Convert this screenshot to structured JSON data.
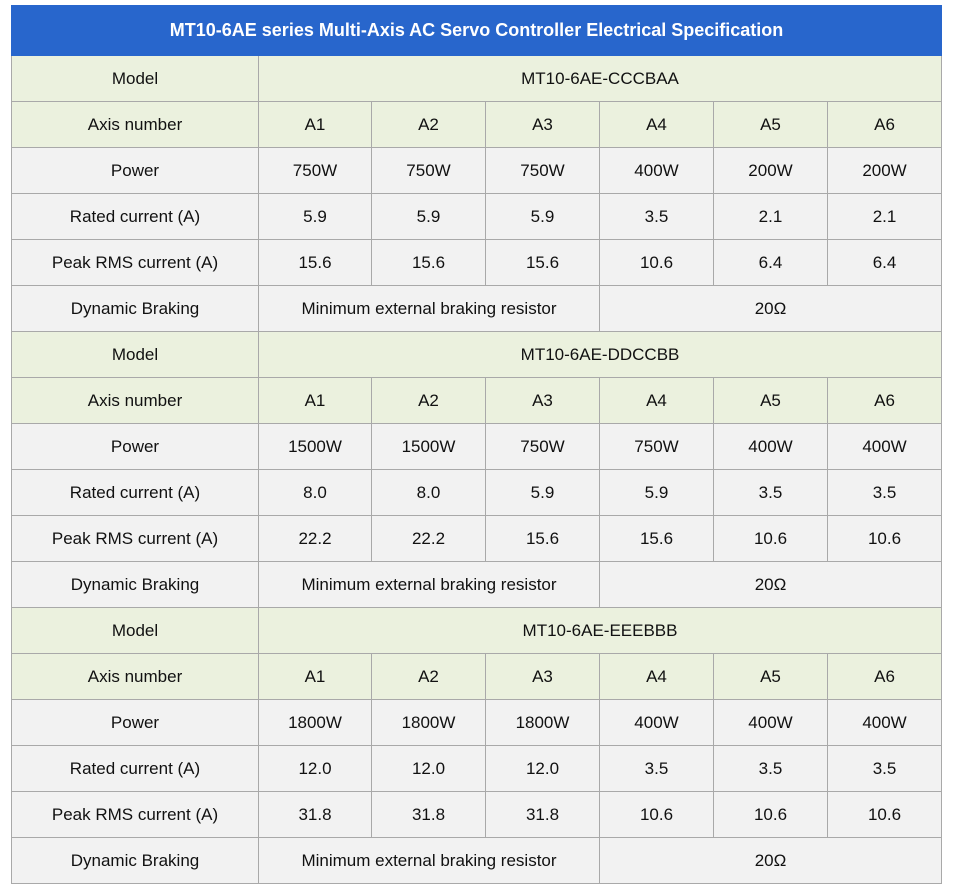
{
  "title": "MT10-6AE series Multi-Axis AC Servo Controller Electrical Specification",
  "labels": {
    "model": "Model",
    "axis_number": "Axis number",
    "power": "Power",
    "rated_current": "Rated current (A)",
    "peak_rms_current": "Peak RMS current (A)",
    "dynamic_braking": "Dynamic Braking"
  },
  "braking_text": "Minimum external braking resistor",
  "colors": {
    "title_bg": "#2866cc",
    "title_text": "#ffffff",
    "green_row": "#ebf1de",
    "gray_row": "#f2f2f2",
    "border": "#a9a9a9"
  },
  "models": [
    {
      "name": "MT10-6AE-CCCBAA",
      "axes": [
        "A1",
        "A2",
        "A3",
        "A4",
        "A5",
        "A6"
      ],
      "power": [
        "750W",
        "750W",
        "750W",
        "400W",
        "200W",
        "200W"
      ],
      "rated_current": [
        "5.9",
        "5.9",
        "5.9",
        "3.5",
        "2.1",
        "2.1"
      ],
      "peak_rms_current": [
        "15.6",
        "15.6",
        "15.6",
        "10.6",
        "6.4",
        "6.4"
      ],
      "braking_resistor": "20Ω"
    },
    {
      "name": "MT10-6AE-DDCCBB",
      "axes": [
        "A1",
        "A2",
        "A3",
        "A4",
        "A5",
        "A6"
      ],
      "power": [
        "1500W",
        "1500W",
        "750W",
        "750W",
        "400W",
        "400W"
      ],
      "rated_current": [
        "8.0",
        "8.0",
        "5.9",
        "5.9",
        "3.5",
        "3.5"
      ],
      "peak_rms_current": [
        "22.2",
        "22.2",
        "15.6",
        "15.6",
        "10.6",
        "10.6"
      ],
      "braking_resistor": "20Ω"
    },
    {
      "name": "MT10-6AE-EEEBBB",
      "axes": [
        "A1",
        "A2",
        "A3",
        "A4",
        "A5",
        "A6"
      ],
      "power": [
        "1800W",
        "1800W",
        "1800W",
        "400W",
        "400W",
        "400W"
      ],
      "rated_current": [
        "12.0",
        "12.0",
        "12.0",
        "3.5",
        "3.5",
        "3.5"
      ],
      "peak_rms_current": [
        "31.8",
        "31.8",
        "31.8",
        "10.6",
        "10.6",
        "10.6"
      ],
      "braking_resistor": "20Ω"
    }
  ]
}
